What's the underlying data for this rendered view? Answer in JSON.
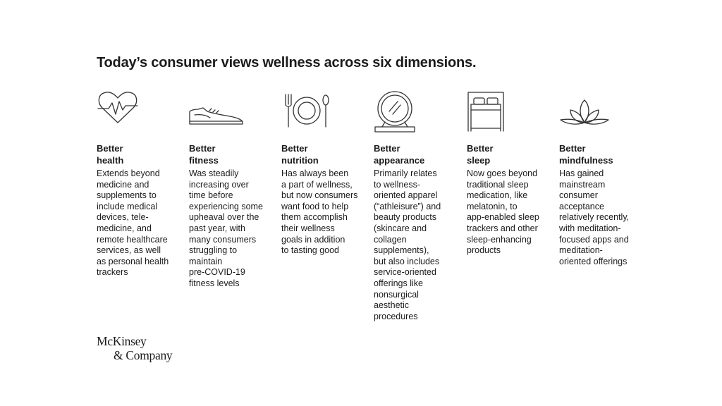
{
  "title": "Today’s consumer views wellness across six dimensions.",
  "columns": [
    {
      "icon": "heart-pulse-icon",
      "heading": [
        "Better",
        "health"
      ],
      "lines": [
        "Extends beyond",
        "medicine and",
        "supplements to",
        "include medical",
        "devices, tele-",
        "medicine, and",
        "remote healthcare",
        "services, as well",
        "as personal health",
        "trackers"
      ]
    },
    {
      "icon": "sneaker-icon",
      "heading": [
        "Better",
        "fitness"
      ],
      "lines": [
        "Was steadily",
        "increasing over",
        "time before",
        "experiencing some",
        "upheaval over the",
        "past year, with",
        "many consumers",
        "struggling to",
        "maintain",
        "pre-COVID-19",
        "fitness levels"
      ]
    },
    {
      "icon": "plate-utensils-icon",
      "heading": [
        "Better",
        "nutrition"
      ],
      "lines": [
        "Has always been",
        "a part of wellness,",
        "but now consumers",
        "want food to help",
        "them accomplish",
        "their wellness",
        "goals in addition",
        "to tasting good"
      ]
    },
    {
      "icon": "vanity-mirror-icon",
      "heading": [
        "Better",
        "appearance"
      ],
      "lines": [
        "Primarily relates",
        "to wellness-",
        "oriented apparel",
        "(“athleisure”) and",
        "beauty products",
        "(skincare and",
        "collagen",
        "supplements),",
        "but also includes",
        "service-oriented",
        "offerings like",
        "nonsurgical",
        "aesthetic",
        "procedures"
      ]
    },
    {
      "icon": "bed-icon",
      "heading": [
        "Better",
        "sleep"
      ],
      "lines": [
        "Now goes beyond",
        "traditional sleep",
        "medication, like",
        "melatonin, to",
        "app-enabled sleep",
        "trackers and other",
        "sleep-enhancing",
        "products"
      ]
    },
    {
      "icon": "lotus-icon",
      "heading": [
        "Better",
        "mindfulness"
      ],
      "lines": [
        "Has gained",
        "mainstream",
        "consumer",
        "acceptance",
        "relatively recently,",
        "with meditation-",
        "focused apps and",
        "meditation-",
        "oriented offerings"
      ]
    }
  ],
  "logo": {
    "line1": "McKinsey",
    "line2": "& Company"
  }
}
